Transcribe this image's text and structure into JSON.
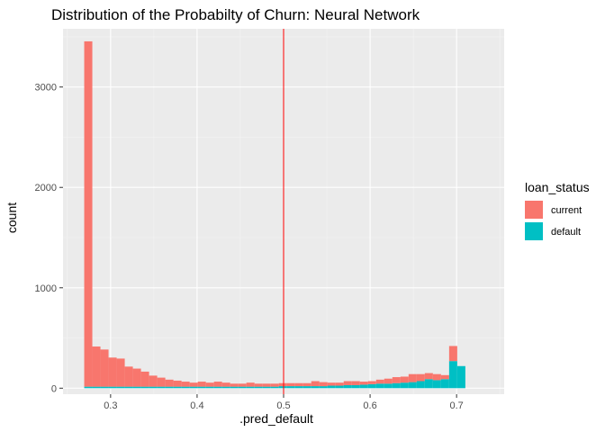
{
  "chart_data": {
    "type": "bar",
    "subtype": "stacked-histogram",
    "title": "Distribution of the Probabilty of Churn: Neural Network",
    "xlabel": ".pred_default",
    "ylabel": "count",
    "xlim": [
      0.245,
      0.755
    ],
    "ylim": [
      -60,
      3580
    ],
    "xticks": [
      0.3,
      0.4,
      0.5,
      0.6,
      0.7
    ],
    "xtick_labels": [
      "0.3",
      "0.4",
      "0.5",
      "0.6",
      "0.7"
    ],
    "yticks": [
      0,
      1000,
      2000,
      3000
    ],
    "ytick_labels": [
      "0",
      "1000",
      "2000",
      "3000"
    ],
    "grid": true,
    "legend": {
      "title": "loan_status",
      "position": "right"
    },
    "vline": {
      "x": 0.5,
      "color": "#ff0000"
    },
    "bin_start": 0.2695,
    "bin_width": 0.009375,
    "series": [
      {
        "name": "current",
        "color": "#F8766D",
        "values": [
          3440,
          400,
          370,
          290,
          280,
          200,
          180,
          150,
          110,
          90,
          70,
          60,
          50,
          40,
          50,
          40,
          50,
          40,
          30,
          30,
          40,
          30,
          30,
          30,
          30,
          30,
          30,
          30,
          50,
          40,
          30,
          30,
          40,
          40,
          30,
          30,
          40,
          50,
          60,
          60,
          80,
          70,
          60,
          60,
          40,
          150,
          0,
          0
        ]
      },
      {
        "name": "default",
        "color": "#00BFC4",
        "values": [
          15,
          15,
          15,
          15,
          15,
          15,
          15,
          15,
          15,
          15,
          15,
          15,
          15,
          15,
          15,
          15,
          15,
          15,
          15,
          15,
          15,
          15,
          15,
          15,
          20,
          20,
          20,
          20,
          20,
          20,
          25,
          25,
          30,
          30,
          35,
          40,
          45,
          45,
          50,
          55,
          60,
          70,
          90,
          80,
          90,
          270,
          220,
          0
        ]
      }
    ]
  }
}
